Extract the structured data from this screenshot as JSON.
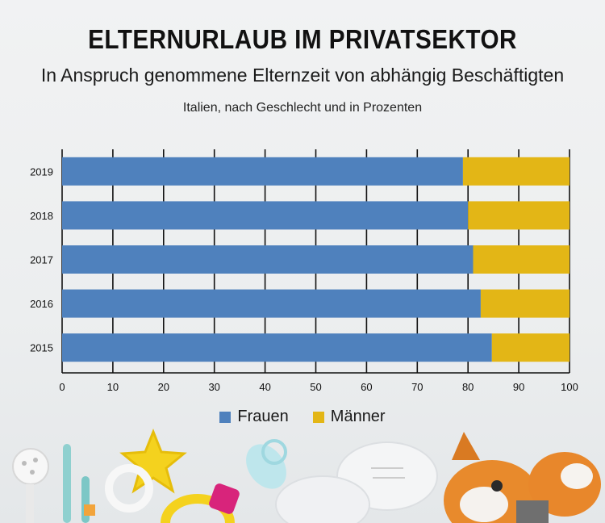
{
  "title": "ELTERNURLAUB IM PRIVATSEKTOR",
  "subtitle": "In Anspruch genommene Elternzeit von abhängig Beschäftigten",
  "note": "Italien, nach Geschlecht und in Prozenten",
  "colors": {
    "frauen": "#4f81bd",
    "maenner": "#e3b616"
  },
  "legend": {
    "frauen": "Frauen",
    "maenner": "Männer"
  },
  "chart_data": {
    "type": "bar",
    "orientation": "horizontal",
    "stacked": true,
    "categories": [
      "2019",
      "2018",
      "2017",
      "2016",
      "2015"
    ],
    "series": [
      {
        "name": "Frauen",
        "values": [
          79,
          80,
          81,
          82.5,
          84.7
        ]
      },
      {
        "name": "Männer",
        "values": [
          21,
          20,
          19,
          17.5,
          15.3
        ]
      }
    ],
    "xlim": [
      0,
      100
    ],
    "xticks": [
      0,
      10,
      20,
      30,
      40,
      50,
      60,
      70,
      80,
      90,
      100
    ],
    "grid": true,
    "legend_position": "bottom"
  }
}
